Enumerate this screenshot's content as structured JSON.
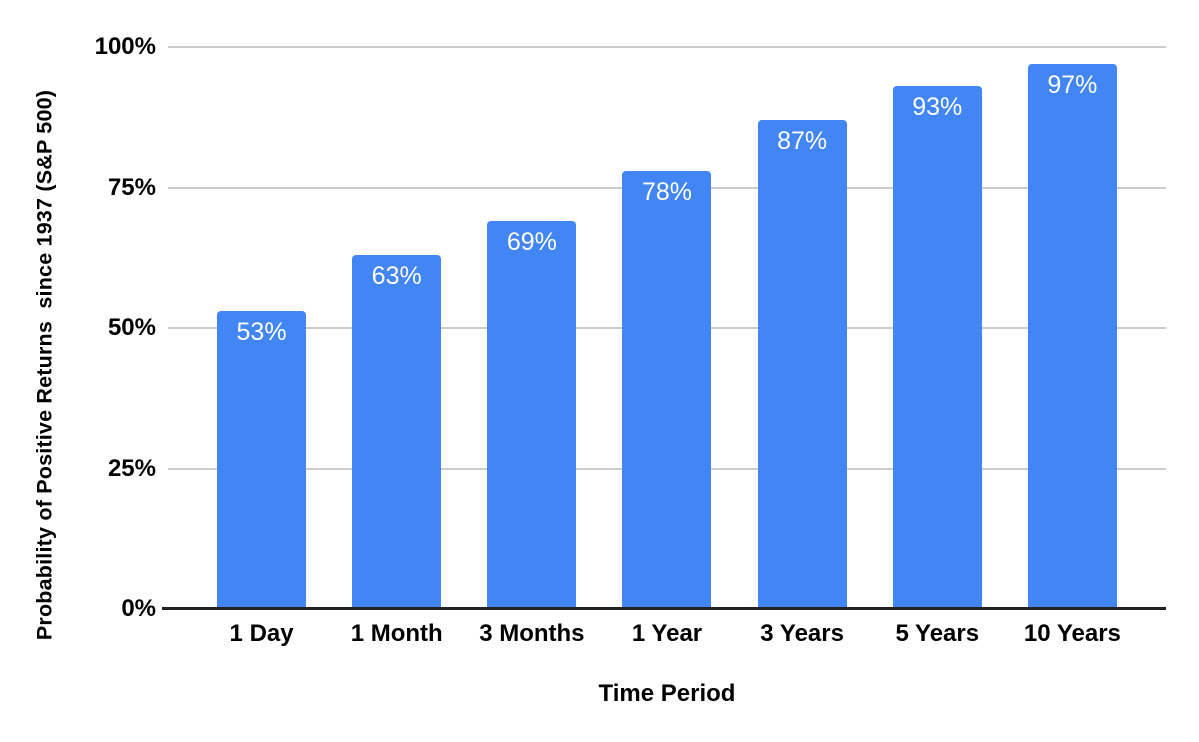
{
  "chart_data": {
    "type": "bar",
    "title": "",
    "categories": [
      "1 Day",
      "1 Month",
      "3 Months",
      "1 Year",
      "3 Years",
      "5 Years",
      "10 Years"
    ],
    "values": [
      53,
      63,
      69,
      78,
      87,
      93,
      97
    ],
    "value_labels": [
      "53%",
      "63%",
      "69%",
      "78%",
      "87%",
      "93%",
      "97%"
    ],
    "xlabel": "Time Period",
    "ylabel": "Probability of Positive Returns  since 1937 (S&P 500)",
    "ylim": [
      0,
      100
    ],
    "yticks": [
      {
        "label": "100%",
        "value": 100
      },
      {
        "label": "75%",
        "value": 75
      },
      {
        "label": "50%",
        "value": 50
      },
      {
        "label": "25%",
        "value": 25
      },
      {
        "label": "0%",
        "value": 0
      }
    ],
    "grid": true,
    "legend": "none",
    "colors": {
      "bar": "#4285F4",
      "bar_label_text": "#ffffff",
      "gridline": "#cccccc",
      "axis_line": "#222222",
      "tick_text": "#000000",
      "background": "#ffffff"
    }
  }
}
